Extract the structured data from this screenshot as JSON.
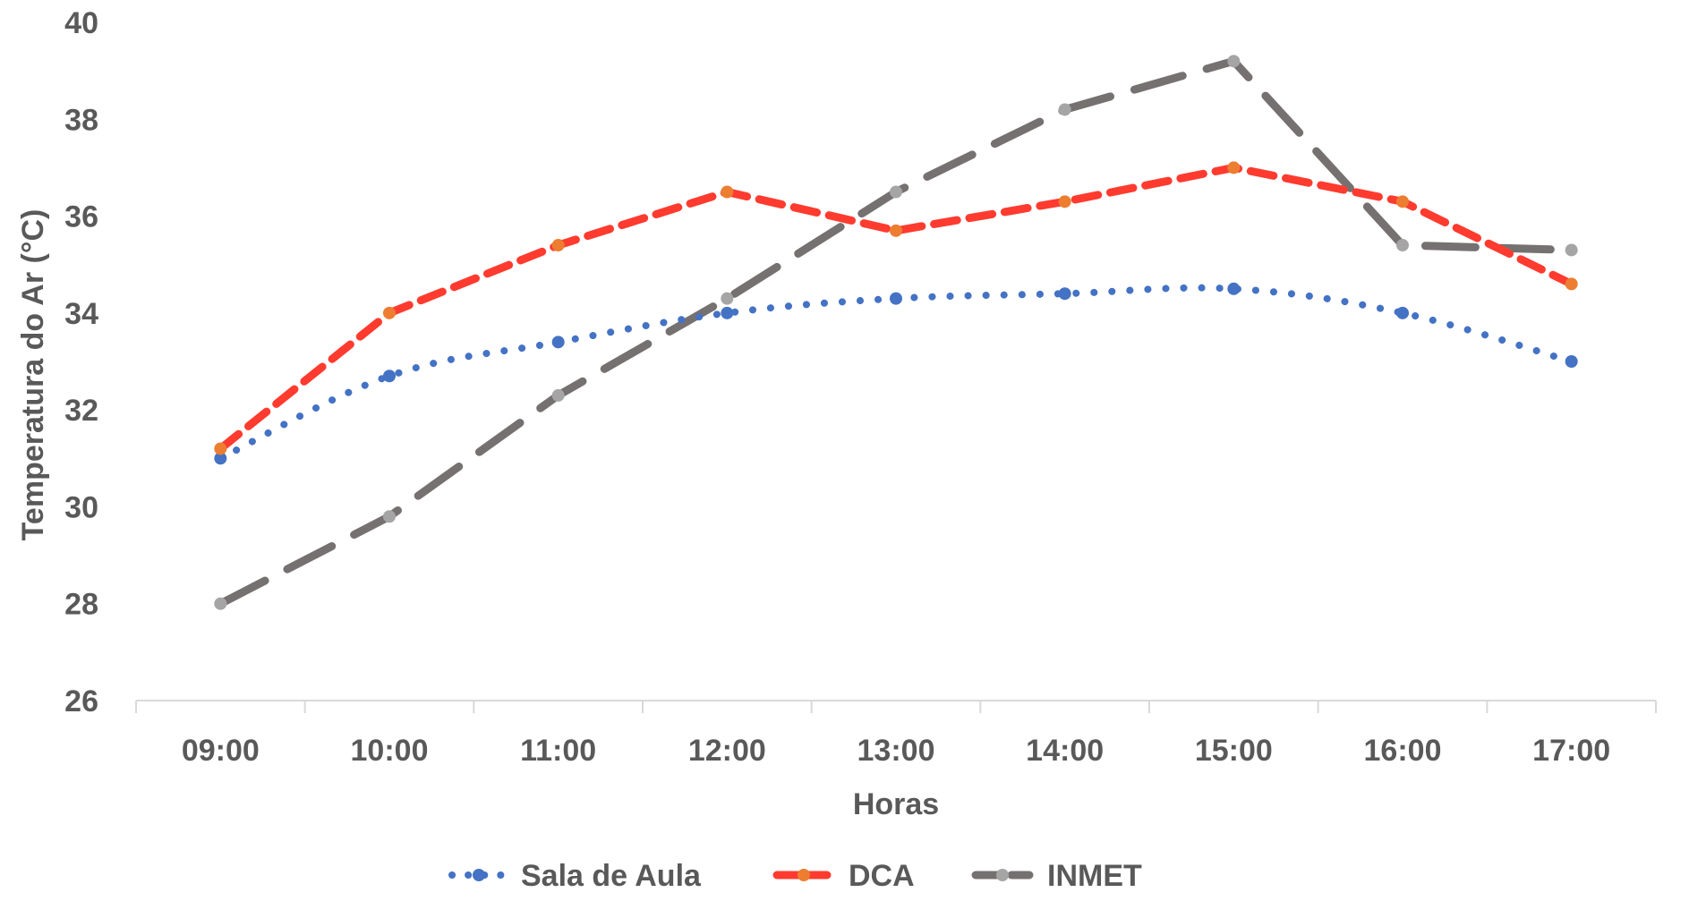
{
  "chart_data": {
    "type": "line",
    "title": "",
    "xlabel": "Horas",
    "ylabel": "Temperatura do Ar (°C)",
    "categories": [
      "09:00",
      "10:00",
      "11:00",
      "12:00",
      "13:00",
      "14:00",
      "15:00",
      "16:00",
      "17:00"
    ],
    "ylim": [
      26,
      40
    ],
    "yticks": [
      26,
      28,
      30,
      32,
      34,
      36,
      38,
      40
    ],
    "grid": false,
    "legend_position": "bottom",
    "series": [
      {
        "name": "Sala de Aula",
        "values": [
          31.0,
          32.7,
          33.4,
          34.0,
          34.3,
          34.4,
          34.5,
          34.0,
          33.0
        ],
        "color": "#4472C4",
        "marker_color": "#4472C4",
        "line_style": "dotted",
        "smooth": true
      },
      {
        "name": "DCA",
        "values": [
          31.2,
          34.0,
          35.4,
          36.5,
          35.7,
          36.3,
          37.0,
          36.3,
          34.6
        ],
        "color": "#FF3B2F",
        "marker_color": "#ED7D31",
        "line_style": "dashed",
        "smooth": false
      },
      {
        "name": "INMET",
        "values": [
          28.0,
          29.8,
          32.3,
          34.3,
          36.5,
          38.2,
          39.2,
          35.4,
          35.3
        ],
        "color": "#767171",
        "marker_color": "#A5A5A5",
        "line_style": "long-dashed",
        "smooth": false
      }
    ]
  }
}
